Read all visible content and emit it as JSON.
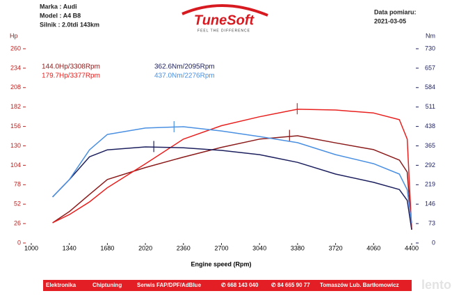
{
  "header": {
    "brand": "Marka : Audi",
    "model": "Model : A4 B8",
    "engine": "Silnik : 2.0tdi 143km",
    "date_label": "Data pomiaru:",
    "date": "2021-03-05",
    "logo": "TuneSoft",
    "tagline": "FEEL THE DIFFERENCE"
  },
  "chart_data": {
    "type": "line",
    "x_label": "Engine speed (Rpm)",
    "y_label": "Hp",
    "y2_label": "Nm",
    "x": [
      1190,
      1340,
      1520,
      1680,
      2020,
      2360,
      2700,
      3040,
      3380,
      3720,
      4060,
      4290,
      4360,
      4400
    ],
    "xlim": [
      1000,
      4400
    ],
    "xticks": [
      1000,
      1340,
      1680,
      2020,
      2360,
      2700,
      3040,
      3380,
      3720,
      4060,
      4400
    ],
    "ylim": [
      0,
      260
    ],
    "yticks": [
      0,
      26,
      52,
      78,
      104,
      130,
      156,
      182,
      208,
      234,
      260
    ],
    "y2lim": [
      0,
      730
    ],
    "y2ticks": [
      0,
      73,
      146,
      219,
      292,
      365,
      438,
      511,
      584,
      657,
      730
    ],
    "series": [
      {
        "name": "144.0Hp/3308Rpm",
        "color": "#8b1a1a",
        "axis": "y",
        "peak": [
          3308,
          144.0
        ],
        "values": [
          27,
          42,
          65,
          85,
          101,
          115,
          128,
          139,
          143.5,
          134,
          125,
          111,
          95,
          18
        ]
      },
      {
        "name": "179.7Hp/3377Rpm",
        "color": "#e8201e",
        "axis": "y",
        "peak": [
          3377,
          179.7
        ],
        "values": [
          27,
          38,
          55,
          74,
          106,
          139,
          157,
          169,
          179,
          178,
          174,
          165,
          139,
          18
        ]
      },
      {
        "name": "362.6Nm/2095Rpm",
        "color": "#1c1f5e",
        "axis": "y2",
        "peak": [
          2095,
          362.6
        ],
        "values": [
          173,
          238,
          324,
          350,
          361,
          358,
          348,
          332,
          303,
          259,
          228,
          201,
          160,
          50
        ]
      },
      {
        "name": "437.0Nm/2276Rpm",
        "color": "#4a90e2",
        "axis": "y2",
        "peak": [
          2276,
          437.0
        ],
        "values": [
          173,
          238,
          350,
          408,
          432,
          437,
          421,
          400,
          377,
          332,
          298,
          259,
          200,
          76
        ]
      }
    ]
  },
  "footer": {
    "items": [
      "Elektronika",
      "Chiptuning",
      "Serwis FAP/DPF/AdBlue",
      "✆ 668 143 040",
      "✆ 84 665 90 77",
      "Tomaszów Lub. Bartłomowicz"
    ],
    "watermark": "lento.pl"
  }
}
